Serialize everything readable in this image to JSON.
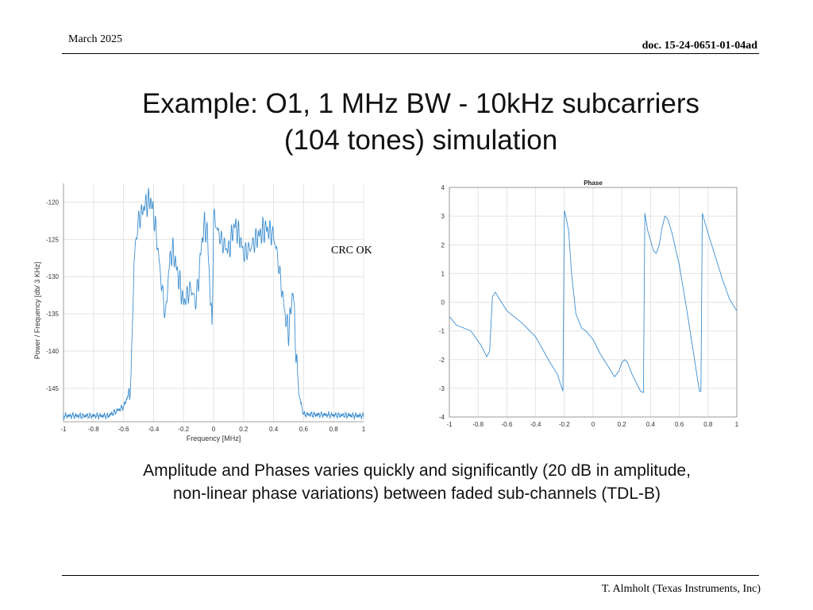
{
  "header": {
    "date": "March 2025",
    "doc_id": "doc. 15-24-0651-01-04ad"
  },
  "title": {
    "line1": "Example: O1, 1 MHz BW - 10kHz subcarriers",
    "line2": "(104 tones) simulation"
  },
  "annotation": {
    "crc": "CRC OK"
  },
  "caption": {
    "line1": "Amplitude and Phases varies quickly and significantly (20 dB in amplitude,",
    "line2": "non-linear phase variations) between faded sub-channels (TDL-B)"
  },
  "footer": {
    "author": "T. Almholt (Texas Instruments, Inc)"
  },
  "colors": {
    "line": "#3f8fcf",
    "grid": "#e4e4e4",
    "axis": "#888888"
  },
  "chart_data": [
    {
      "type": "line",
      "title": "",
      "xlabel": "Frequency [MHz]",
      "ylabel": "Power / Frequency [db/  3 KHz]",
      "xlim": [
        -1,
        1
      ],
      "ylim": [
        -149.5,
        -117.5
      ],
      "xticks": [
        -1,
        -0.8,
        -0.6,
        -0.4,
        -0.2,
        0,
        0.2,
        0.4,
        0.6,
        0.8,
        1
      ],
      "xtick_labels": [
        "-1",
        "-0.8",
        "-0.6",
        "-0.4",
        "-0.2",
        "0",
        "0.2",
        "0.4",
        "0.6",
        "0.8",
        "1"
      ],
      "yticks": [
        -145,
        -140,
        -135,
        -130,
        -125,
        -120
      ],
      "ytick_labels": [
        "-145",
        "-140",
        "-135",
        "-130",
        "-125",
        "-120"
      ],
      "grid": true,
      "series": [
        {
          "values_desc": "psd",
          "x": [
            -1.0,
            -0.7,
            -0.6,
            -0.57,
            -0.55,
            -0.54,
            -0.53,
            -0.52,
            -0.5,
            -0.46,
            -0.42,
            -0.4,
            -0.38,
            -0.35,
            -0.32,
            -0.3,
            -0.29,
            -0.27,
            -0.25,
            -0.2,
            -0.15,
            -0.12,
            -0.1,
            -0.08,
            -0.06,
            -0.04,
            -0.02,
            -0.01,
            0.0,
            0.01,
            0.02,
            0.03,
            0.04,
            0.06,
            0.1,
            0.14,
            0.18,
            0.2,
            0.25,
            0.3,
            0.35,
            0.4,
            0.42,
            0.44,
            0.46,
            0.48,
            0.5,
            0.52,
            0.53,
            0.55,
            0.57,
            0.6,
            1.0
          ],
          "values": [
            -148.7,
            -148.7,
            -147.5,
            -146.0,
            -143.5,
            -135.0,
            -128.0,
            -125.0,
            -122.0,
            -120.0,
            -119.2,
            -121.0,
            -124.0,
            -130.0,
            -135.0,
            -129.0,
            -127.0,
            -126.0,
            -128.0,
            -133.0,
            -131.0,
            -133.0,
            -130.0,
            -125.0,
            -122.5,
            -124.0,
            -133.0,
            -136.0,
            -122.0,
            -121.5,
            -123.0,
            -123.5,
            -124.0,
            -125.0,
            -126.0,
            -122.5,
            -124.5,
            -126.5,
            -125.5,
            -124.0,
            -123.0,
            -124.0,
            -126.0,
            -129.0,
            -132.0,
            -135.0,
            -137.0,
            -133.0,
            -131.0,
            -140.0,
            -146.0,
            -148.5,
            -148.7
          ]
        }
      ]
    },
    {
      "type": "line",
      "title": "Phase",
      "xlabel": "",
      "ylabel": "",
      "xlim": [
        -1,
        1
      ],
      "ylim": [
        -4,
        4
      ],
      "xticks": [
        -1,
        -0.8,
        -0.6,
        -0.4,
        -0.2,
        0,
        0.2,
        0.4,
        0.6,
        0.8,
        1
      ],
      "xtick_labels": [
        "-1",
        "-0.8",
        "-0.6",
        "-0.4",
        "-0.2",
        "0",
        "0.2",
        "0.4",
        "0.6",
        "0.8",
        "1"
      ],
      "yticks": [
        -4,
        -3,
        -2,
        -1,
        0,
        1,
        2,
        3,
        4
      ],
      "ytick_labels": [
        "-4",
        "-3",
        "-2",
        "-1",
        "0",
        "1",
        "2",
        "3",
        "4"
      ],
      "grid": true,
      "series": [
        {
          "x": [
            -1.0,
            -0.95,
            -0.85,
            -0.78,
            -0.74,
            -0.72,
            -0.7,
            -0.68,
            -0.65,
            -0.6,
            -0.5,
            -0.4,
            -0.3,
            -0.25,
            -0.21,
            -0.2,
            -0.19,
            -0.17,
            -0.15,
            -0.12,
            -0.08,
            -0.05,
            0.0,
            0.05,
            0.1,
            0.15,
            0.18,
            0.2,
            0.22,
            0.24,
            0.27,
            0.3,
            0.33,
            0.35,
            0.36,
            0.38,
            0.42,
            0.44,
            0.46,
            0.48,
            0.5,
            0.52,
            0.55,
            0.6,
            0.65,
            0.7,
            0.74,
            0.75,
            0.76,
            0.8,
            0.85,
            0.9,
            0.95,
            1.0
          ],
          "values": [
            -0.5,
            -0.8,
            -1.0,
            -1.5,
            -1.9,
            -1.7,
            0.2,
            0.35,
            0.1,
            -0.3,
            -0.7,
            -1.2,
            -2.1,
            -2.5,
            -3.1,
            3.2,
            3.0,
            2.5,
            1.0,
            -0.4,
            -0.9,
            -1.0,
            -1.3,
            -1.8,
            -2.2,
            -2.6,
            -2.4,
            -2.1,
            -2.0,
            -2.1,
            -2.5,
            -2.8,
            -3.1,
            -3.15,
            3.1,
            2.5,
            1.8,
            1.7,
            2.0,
            2.6,
            3.0,
            2.9,
            2.4,
            1.3,
            -0.2,
            -1.8,
            -3.1,
            -3.1,
            3.1,
            2.4,
            1.6,
            0.8,
            0.1,
            -0.3
          ]
        }
      ]
    }
  ]
}
